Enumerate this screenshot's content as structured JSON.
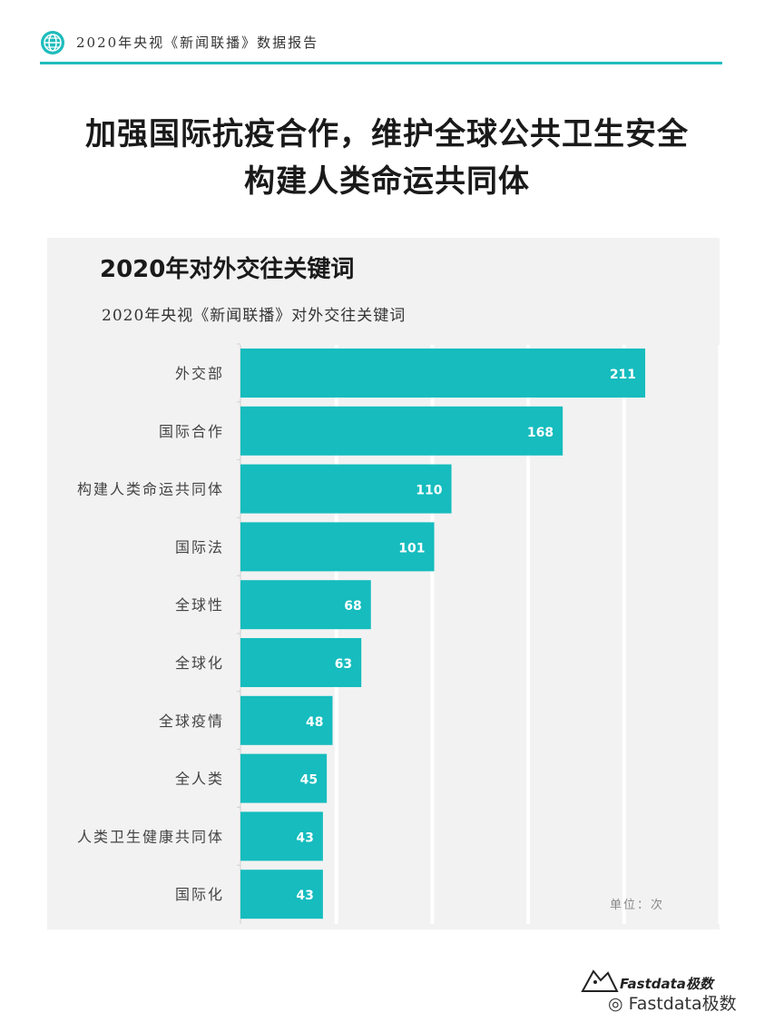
{
  "header": {
    "text": "2020年央视《新闻联播》数据报告",
    "accent": "#1fbcbc",
    "icon": "globe-icon"
  },
  "title": {
    "line1": "加强国际抗疫合作，维护全球公共卫生安全",
    "line2": "构建人类命运共同体"
  },
  "chart_data": {
    "type": "bar",
    "orientation": "horizontal",
    "heading": "2020年对外交往关键词",
    "subtitle": "2020年央视《新闻联播》对外交往关键词",
    "unit": "单位：次",
    "categories": [
      "外交部",
      "国际合作",
      "构建人类命运共同体",
      "国际法",
      "全球性",
      "全球化",
      "全球疫情",
      "全人类",
      "人类卫生健康共同体",
      "国际化"
    ],
    "values": [
      211,
      168,
      110,
      101,
      68,
      63,
      48,
      45,
      43,
      43
    ],
    "xlim": [
      0,
      250
    ],
    "grid": true,
    "bar_color": "#16bcbe"
  },
  "footer": {
    "logo_text": "Fastdata极数",
    "wechat_text": "Fastdata极数"
  }
}
